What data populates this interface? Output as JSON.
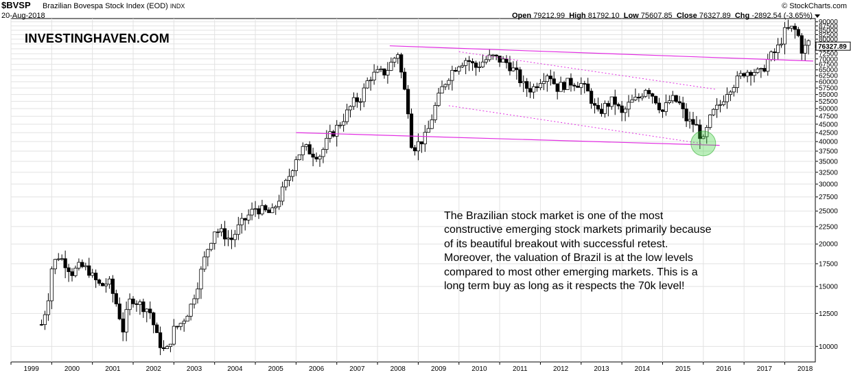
{
  "header": {
    "symbol": "$BVSP",
    "name": "Brazilian Bovespa Stock Index (EOD)",
    "exchange": "INDX",
    "date": "20-Aug-2018",
    "open_label": "Open",
    "open": "79212.99",
    "high_label": "High",
    "high": "81792.10",
    "low_label": "Low",
    "low": "75607.85",
    "close_label": "Close",
    "close": "76327.89",
    "chg_label": "Chg",
    "chg": "-2892.54 (-3.65%)",
    "credit": "© StockCharts.com"
  },
  "watermark": "INVESTINGHAVEN.COM",
  "annotation": "The Brazilian stock market is one of the most constructive emerging stock markets primarily because of its beautiful breakout with successful retest. Moreover, the valuation of Brazil is at the low levels compared to most other emerging markets. This is a long term buy as long as it respects the 70k level!",
  "chart_data": {
    "type": "candlestick",
    "scale": "log",
    "x_ticks": [
      "1999",
      "2000",
      "2001",
      "2002",
      "2003",
      "2004",
      "2005",
      "2006",
      "2007",
      "2008",
      "2009",
      "2010",
      "2011",
      "2012",
      "2013",
      "2014",
      "2015",
      "2016",
      "2017",
      "2018"
    ],
    "y_ticks": [
      10000,
      12500,
      15000,
      17500,
      20000,
      22500,
      25000,
      27500,
      30000,
      32500,
      35000,
      37500,
      40000,
      42500,
      45000,
      47500,
      50000,
      52500,
      55000,
      57500,
      60000,
      62500,
      65000,
      67500,
      70000,
      72500,
      75000,
      77500,
      80000,
      82500,
      85000,
      87500,
      90000
    ],
    "last_value_label": "76327.89",
    "xlim": [
      1999.0,
      2018.75
    ],
    "ylim": [
      9000,
      92000
    ],
    "price_path": [
      [
        1999.75,
        11600
      ],
      [
        1999.9,
        13500
      ],
      [
        2000.0,
        17000
      ],
      [
        2000.15,
        18500
      ],
      [
        2000.3,
        17800
      ],
      [
        2000.5,
        16500
      ],
      [
        2000.7,
        17200
      ],
      [
        2000.9,
        16800
      ],
      [
        2001.0,
        16000
      ],
      [
        2001.2,
        15000
      ],
      [
        2001.4,
        15500
      ],
      [
        2001.6,
        13200
      ],
      [
        2001.75,
        11200
      ],
      [
        2001.9,
        13500
      ],
      [
        2002.0,
        13800
      ],
      [
        2002.2,
        13200
      ],
      [
        2002.4,
        12800
      ],
      [
        2002.6,
        10500
      ],
      [
        2002.8,
        9500
      ],
      [
        2003.0,
        11200
      ],
      [
        2003.2,
        11800
      ],
      [
        2003.4,
        13000
      ],
      [
        2003.6,
        15500
      ],
      [
        2003.8,
        19000
      ],
      [
        2004.0,
        22000
      ],
      [
        2004.2,
        21500
      ],
      [
        2004.4,
        20500
      ],
      [
        2004.6,
        22500
      ],
      [
        2004.8,
        24000
      ],
      [
        2005.0,
        25500
      ],
      [
        2005.2,
        25000
      ],
      [
        2005.4,
        24500
      ],
      [
        2005.6,
        27500
      ],
      [
        2005.8,
        31000
      ],
      [
        2006.0,
        36000
      ],
      [
        2006.2,
        38500
      ],
      [
        2006.4,
        37000
      ],
      [
        2006.6,
        36500
      ],
      [
        2006.8,
        41000
      ],
      [
        2007.0,
        44000
      ],
      [
        2007.2,
        47500
      ],
      [
        2007.4,
        52000
      ],
      [
        2007.6,
        54000
      ],
      [
        2007.8,
        62000
      ],
      [
        2008.0,
        63500
      ],
      [
        2008.2,
        64000
      ],
      [
        2008.4,
        70000
      ],
      [
        2008.5,
        73000
      ],
      [
        2008.6,
        62000
      ],
      [
        2008.75,
        50000
      ],
      [
        2008.85,
        38000
      ],
      [
        2009.0,
        39500
      ],
      [
        2009.2,
        41500
      ],
      [
        2009.4,
        50000
      ],
      [
        2009.6,
        58000
      ],
      [
        2009.8,
        64000
      ],
      [
        2010.0,
        68000
      ],
      [
        2010.2,
        70000
      ],
      [
        2010.4,
        66000
      ],
      [
        2010.6,
        69000
      ],
      [
        2010.8,
        71000
      ],
      [
        2011.0,
        69500
      ],
      [
        2011.2,
        68000
      ],
      [
        2011.4,
        63500
      ],
      [
        2011.6,
        58000
      ],
      [
        2011.8,
        57000
      ],
      [
        2012.0,
        61000
      ],
      [
        2012.2,
        64000
      ],
      [
        2012.4,
        57500
      ],
      [
        2012.6,
        59000
      ],
      [
        2012.8,
        60000
      ],
      [
        2013.0,
        59000
      ],
      [
        2013.2,
        55000
      ],
      [
        2013.4,
        48000
      ],
      [
        2013.6,
        51000
      ],
      [
        2013.8,
        53000
      ],
      [
        2014.0,
        48000
      ],
      [
        2014.2,
        52000
      ],
      [
        2014.4,
        53500
      ],
      [
        2014.6,
        58000
      ],
      [
        2014.8,
        54000
      ],
      [
        2015.0,
        49000
      ],
      [
        2015.2,
        53500
      ],
      [
        2015.4,
        52000
      ],
      [
        2015.6,
        46000
      ],
      [
        2015.8,
        45000
      ],
      [
        2016.0,
        40000
      ],
      [
        2016.2,
        48000
      ],
      [
        2016.4,
        51000
      ],
      [
        2016.6,
        57000
      ],
      [
        2016.8,
        60000
      ],
      [
        2017.0,
        64000
      ],
      [
        2017.2,
        65000
      ],
      [
        2017.4,
        63000
      ],
      [
        2017.6,
        70000
      ],
      [
        2017.8,
        74000
      ],
      [
        2018.0,
        84000
      ],
      [
        2018.15,
        86000
      ],
      [
        2018.3,
        84500
      ],
      [
        2018.45,
        72000
      ],
      [
        2018.55,
        79500
      ],
      [
        2018.63,
        76327.89
      ]
    ],
    "lines": [
      {
        "style": "solid",
        "from": [
          2008.3,
          76500
        ],
        "to": [
          2018.7,
          69000
        ]
      },
      {
        "style": "solid",
        "from": [
          2006.0,
          42500
        ],
        "to": [
          2016.4,
          39000
        ]
      },
      {
        "style": "dotted",
        "from": [
          2010.0,
          73500
        ],
        "to": [
          2016.3,
          57000
        ]
      },
      {
        "style": "dotted",
        "from": [
          2009.75,
          51000
        ],
        "to": [
          2015.95,
          39500
        ]
      }
    ],
    "highlight": {
      "x": 2016.0,
      "y": 39500
    }
  }
}
